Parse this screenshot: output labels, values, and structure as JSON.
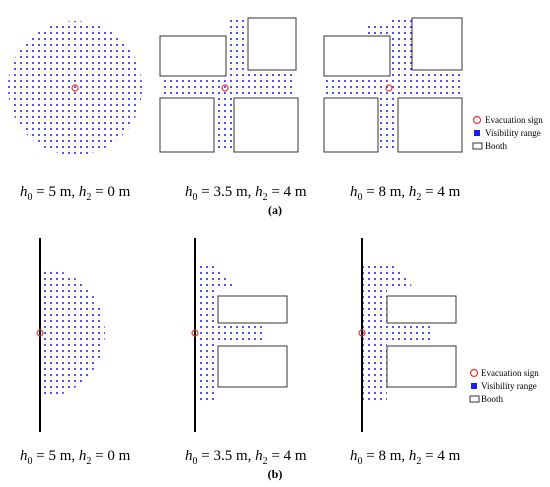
{
  "figure": {
    "panel_labels": [
      "(a)",
      "(b)"
    ],
    "legend": [
      "Evacuation sign",
      "Visibility range",
      "Booth"
    ],
    "captions": [
      [
        "h",
        "0",
        " = 5 m,  ",
        "h",
        "2",
        " = 0 m"
      ],
      [
        "h",
        "0",
        " = 3.5 m,  ",
        "h",
        "2",
        " = 4 m"
      ],
      [
        "h",
        "0",
        " = 8 m,  ",
        "h",
        "2",
        " = 4 m"
      ]
    ]
  }
}
